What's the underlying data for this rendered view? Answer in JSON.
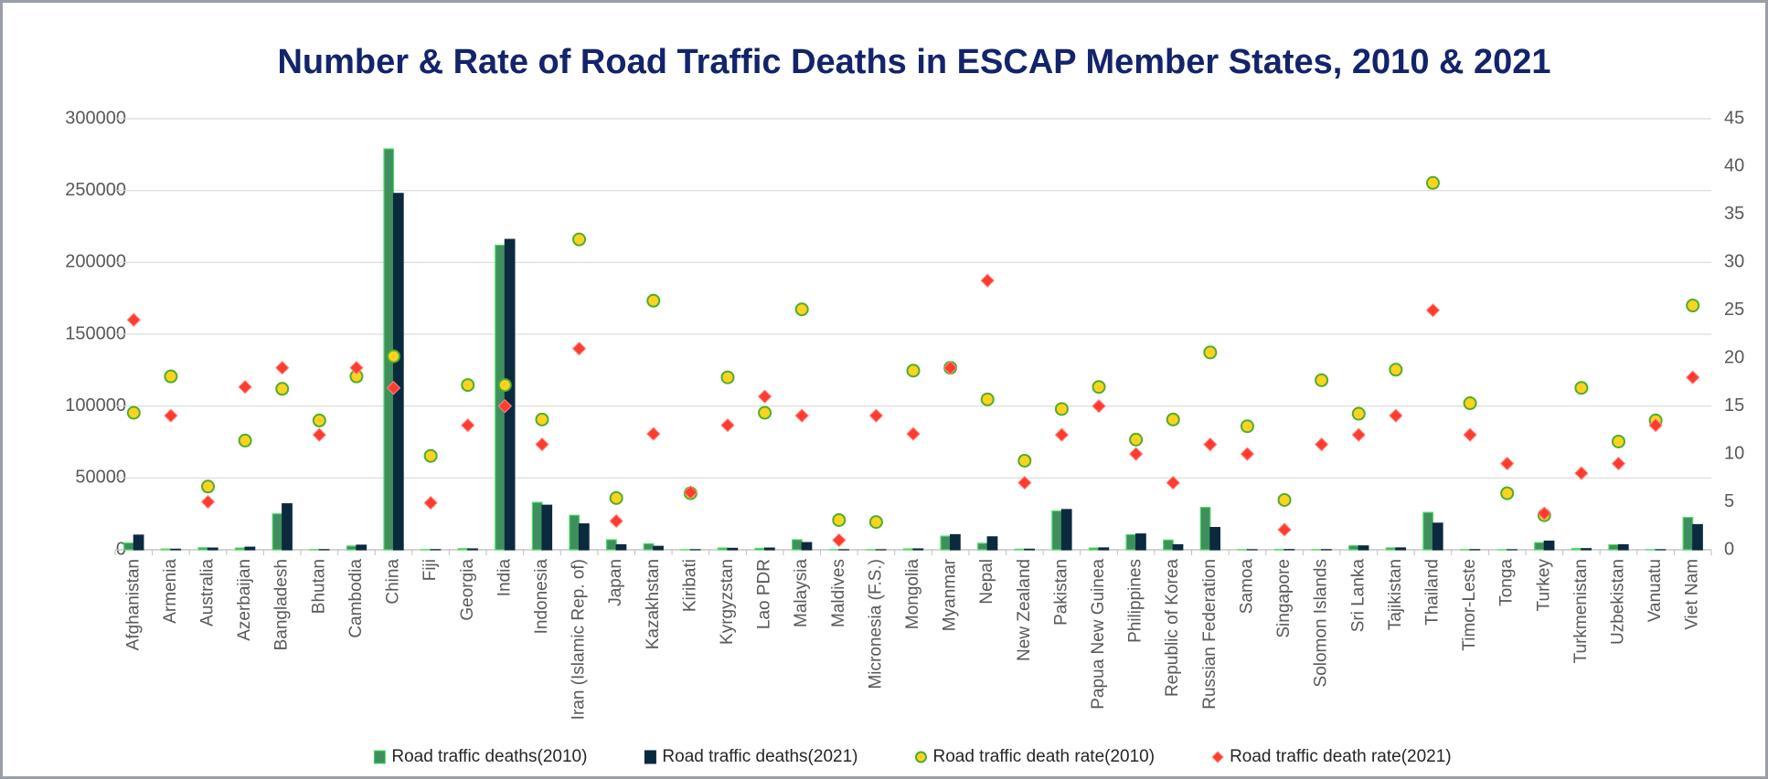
{
  "chart_data": {
    "type": "bar",
    "title": "Number & Rate of Road Traffic Deaths in ESCAP Member States, 2010 & 2021",
    "categories": [
      "Afghanistan",
      "Armenia",
      "Australia",
      "Azerbaijan",
      "Bangladesh",
      "Bhutan",
      "Cambodia",
      "China",
      "Fiji",
      "Georgia",
      "India",
      "Indonesia",
      "Iran (Islamic Rep. of)",
      "Japan",
      "Kazakhstan",
      "Kiribati",
      "Kyrgyzstan",
      "Lao PDR",
      "Malaysia",
      "Maldives",
      "Micronesia (F.S.)",
      "Mongolia",
      "Myanmar",
      "Nepal",
      "New Zealand",
      "Pakistan",
      "Papua New Guinea",
      "Philippines",
      "Republic of Korea",
      "Russian Federation",
      "Samoa",
      "Singapore",
      "Solomon Islands",
      "Sri Lanka",
      "Tajikistan",
      "Thailand",
      "Timor-Leste",
      "Tonga",
      "Turkey",
      "Turkmenistan",
      "Uzbekistan",
      "Vanuatu",
      "Viet Nam"
    ],
    "series": [
      {
        "name": "Road traffic deaths(2010)",
        "type": "bar",
        "color": "#3f8f5e",
        "edgecolor": "#4cd964",
        "values": [
          4700,
          500,
          1400,
          1200,
          25000,
          100,
          2600,
          279000,
          100,
          800,
          212000,
          33000,
          24000,
          7000,
          4200,
          50,
          1200,
          1000,
          7000,
          50,
          50,
          600,
          9500,
          4500,
          400,
          27000,
          1200,
          10500,
          6800,
          29500,
          50,
          200,
          100,
          2800,
          1300,
          26000,
          100,
          30,
          5000,
          800,
          3500,
          50,
          22500
        ]
      },
      {
        "name": "Road traffic deaths(2021)",
        "type": "bar",
        "color": "#0c2a3e",
        "edgecolor": "#0c2a3e",
        "values": [
          10200,
          400,
          1200,
          1800,
          32000,
          100,
          3200,
          248000,
          100,
          600,
          216000,
          31000,
          18000,
          3500,
          2400,
          50,
          1000,
          1200,
          5000,
          50,
          50,
          600,
          10500,
          9000,
          400,
          28000,
          1300,
          11000,
          3500,
          15500,
          50,
          150,
          100,
          2700,
          1300,
          18500,
          100,
          30,
          6000,
          800,
          3500,
          50,
          17500
        ]
      },
      {
        "name": "Road traffic death rate(2010)",
        "type": "scatter",
        "axis": "y2",
        "marker": "circle",
        "color": "#ffd21f",
        "edgecolor": "#4caf2a",
        "values": [
          14.3,
          18.1,
          6.6,
          11.4,
          16.8,
          13.5,
          18.1,
          20.2,
          9.8,
          17.2,
          17.2,
          13.6,
          32.4,
          5.4,
          26.0,
          5.9,
          18.0,
          14.3,
          25.1,
          3.1,
          2.9,
          18.7,
          19.0,
          15.7,
          9.3,
          14.7,
          17.0,
          11.5,
          13.6,
          20.6,
          12.9,
          5.2,
          17.7,
          14.2,
          18.8,
          38.3,
          15.3,
          5.9,
          3.6,
          16.9,
          11.3,
          13.5,
          25.5
        ]
      },
      {
        "name": "Road traffic death rate(2021)",
        "type": "scatter",
        "axis": "y2",
        "marker": "diamond",
        "color": "#ff3b30",
        "edgecolor": "#ff8a80",
        "values": [
          24.0,
          14.0,
          5.0,
          17.0,
          19.0,
          12.0,
          19.0,
          16.9,
          4.9,
          13.0,
          15.0,
          11.0,
          21.0,
          3.0,
          12.1,
          6.0,
          13.0,
          16.0,
          14.0,
          1.0,
          14.0,
          12.1,
          19.0,
          28.1,
          7.0,
          12.0,
          15.0,
          10.0,
          7.0,
          11.0,
          10.0,
          2.1,
          11.0,
          12.0,
          14.0,
          25.0,
          12.0,
          9.0,
          3.8,
          8.0,
          9.0,
          13.0,
          18.0
        ]
      }
    ],
    "ylim": [
      0,
      300000
    ],
    "yticks": [
      0,
      50000,
      100000,
      150000,
      200000,
      250000,
      300000
    ],
    "y2lim": [
      0,
      45
    ],
    "y2ticks": [
      0,
      5,
      10,
      15,
      20,
      25,
      30,
      35,
      40,
      45
    ],
    "grid": true,
    "legend": "bottom"
  }
}
